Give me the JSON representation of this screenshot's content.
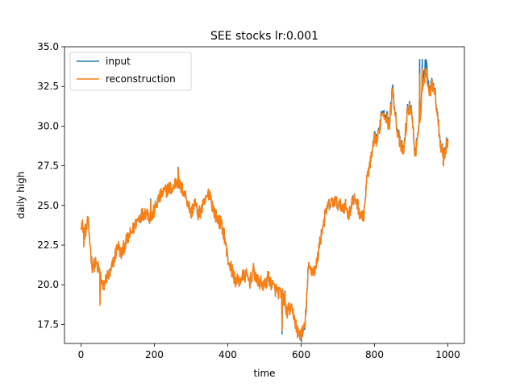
{
  "chart_data": {
    "type": "line",
    "title": "SEE stocks lr:0.001",
    "xlabel": "time",
    "ylabel": "daily high",
    "xlim": [
      -45,
      1045
    ],
    "ylim": [
      16.3,
      35.0
    ],
    "xticks": [
      0,
      200,
      400,
      600,
      800,
      1000
    ],
    "yticks": [
      17.5,
      20.0,
      22.5,
      25.0,
      27.5,
      30.0,
      32.5,
      35.0
    ],
    "xtick_labels": [
      "0",
      "200",
      "400",
      "600",
      "800",
      "1000"
    ],
    "ytick_labels": [
      "17.5",
      "20.0",
      "22.5",
      "25.0",
      "27.5",
      "30.0",
      "32.5",
      "35.0"
    ],
    "grid": false,
    "legend_position": "top-left",
    "series": [
      {
        "name": "input",
        "color": "#1f77b4",
        "x": [
          0,
          10,
          20,
          30,
          40,
          50,
          60,
          70,
          80,
          90,
          100,
          110,
          120,
          130,
          140,
          150,
          160,
          170,
          180,
          190,
          200,
          210,
          220,
          230,
          240,
          250,
          260,
          270,
          280,
          290,
          300,
          310,
          320,
          330,
          340,
          350,
          360,
          370,
          380,
          390,
          400,
          410,
          420,
          430,
          440,
          450,
          460,
          470,
          480,
          490,
          500,
          510,
          520,
          530,
          540,
          550,
          560,
          570,
          580,
          590,
          600,
          610,
          620,
          630,
          640,
          650,
          660,
          670,
          680,
          690,
          700,
          710,
          720,
          730,
          740,
          750,
          760,
          770,
          780,
          790,
          800,
          810,
          820,
          830,
          840,
          850,
          860,
          870,
          880,
          890,
          900,
          910,
          920,
          930,
          940,
          950,
          960,
          970,
          980,
          990,
          1000
        ],
        "values": [
          24.0,
          23.3,
          23.8,
          21.2,
          21.3,
          20.9,
          19.8,
          20.5,
          20.7,
          21.6,
          22.5,
          21.9,
          22.6,
          23.0,
          23.4,
          23.9,
          24.3,
          24.5,
          24.6,
          24.1,
          24.7,
          25.3,
          25.7,
          25.9,
          26.1,
          26.0,
          26.6,
          26.2,
          25.9,
          25.3,
          24.5,
          25.2,
          24.4,
          24.8,
          25.3,
          25.9,
          24.8,
          24.2,
          23.9,
          23.2,
          21.6,
          21.0,
          20.3,
          20.2,
          20.5,
          20.6,
          20.2,
          20.9,
          20.2,
          20.1,
          19.9,
          20.5,
          20.0,
          19.7,
          19.5,
          19.3,
          18.3,
          18.5,
          18.1,
          17.0,
          16.8,
          17.2,
          21.1,
          20.9,
          21.0,
          22.5,
          23.8,
          24.8,
          25.1,
          25.3,
          25.1,
          24.9,
          25.0,
          24.4,
          25.2,
          25.4,
          24.5,
          24.2,
          26.8,
          27.8,
          29.2,
          29.3,
          31.0,
          30.9,
          30.1,
          32.5,
          30.1,
          28.8,
          28.5,
          31.0,
          31.3,
          28.3,
          29.5,
          32.6,
          34.1,
          32.3,
          32.8,
          31.2,
          28.9,
          28.3,
          29.2
        ],
        "note_spikes": [
          [
            8,
            22.4
          ],
          [
            18,
            24.3
          ],
          [
            52,
            18.8
          ],
          [
            190,
            25.4
          ],
          [
            265,
            27.4
          ],
          [
            548,
            16.9
          ],
          [
            556,
            19.6
          ],
          [
            740,
            25.6
          ],
          [
            923,
            34.2
          ],
          [
            930,
            34.2
          ],
          [
            988,
            27.5
          ]
        ]
      },
      {
        "name": "reconstruction",
        "color": "#ff7f0e",
        "x": [
          0,
          10,
          20,
          30,
          40,
          50,
          60,
          70,
          80,
          90,
          100,
          110,
          120,
          130,
          140,
          150,
          160,
          170,
          180,
          190,
          200,
          210,
          220,
          230,
          240,
          250,
          260,
          270,
          280,
          290,
          300,
          310,
          320,
          330,
          340,
          350,
          360,
          370,
          380,
          390,
          400,
          410,
          420,
          430,
          440,
          450,
          460,
          470,
          480,
          490,
          500,
          510,
          520,
          530,
          540,
          550,
          560,
          570,
          580,
          590,
          600,
          610,
          620,
          630,
          640,
          650,
          660,
          670,
          680,
          690,
          700,
          710,
          720,
          730,
          740,
          750,
          760,
          770,
          780,
          790,
          800,
          810,
          820,
          830,
          840,
          850,
          860,
          870,
          880,
          890,
          900,
          910,
          920,
          930,
          940,
          950,
          960,
          970,
          980,
          990,
          1000
        ],
        "values": [
          24.0,
          23.3,
          23.8,
          21.2,
          21.3,
          20.9,
          19.8,
          20.5,
          20.7,
          21.6,
          22.5,
          21.9,
          22.6,
          23.0,
          23.4,
          23.9,
          24.3,
          24.5,
          24.6,
          24.1,
          24.7,
          25.3,
          25.7,
          25.9,
          26.1,
          26.0,
          26.6,
          26.2,
          25.9,
          25.3,
          24.5,
          25.2,
          24.4,
          24.8,
          25.3,
          25.9,
          24.8,
          24.2,
          23.9,
          23.2,
          21.6,
          21.0,
          20.3,
          20.2,
          20.5,
          20.6,
          20.2,
          20.9,
          20.2,
          20.1,
          19.9,
          20.5,
          20.0,
          19.7,
          19.5,
          19.3,
          18.3,
          18.5,
          18.1,
          17.0,
          16.9,
          17.3,
          21.1,
          20.9,
          21.0,
          22.5,
          23.8,
          24.8,
          25.1,
          25.3,
          25.1,
          24.9,
          25.0,
          24.4,
          25.2,
          25.4,
          24.5,
          24.2,
          26.8,
          27.8,
          29.1,
          29.2,
          30.9,
          30.7,
          30.0,
          32.3,
          30.0,
          28.7,
          28.4,
          30.9,
          31.2,
          28.2,
          29.4,
          32.2,
          33.5,
          32.2,
          32.7,
          31.1,
          28.8,
          28.2,
          29.1
        ],
        "note_spikes": [
          [
            8,
            22.4
          ],
          [
            18,
            24.3
          ],
          [
            52,
            18.7
          ],
          [
            190,
            25.3
          ],
          [
            265,
            27.3
          ],
          [
            548,
            17.1
          ],
          [
            556,
            19.5
          ],
          [
            740,
            25.5
          ],
          [
            923,
            33.3
          ],
          [
            930,
            33.6
          ],
          [
            988,
            27.5
          ]
        ]
      }
    ]
  }
}
